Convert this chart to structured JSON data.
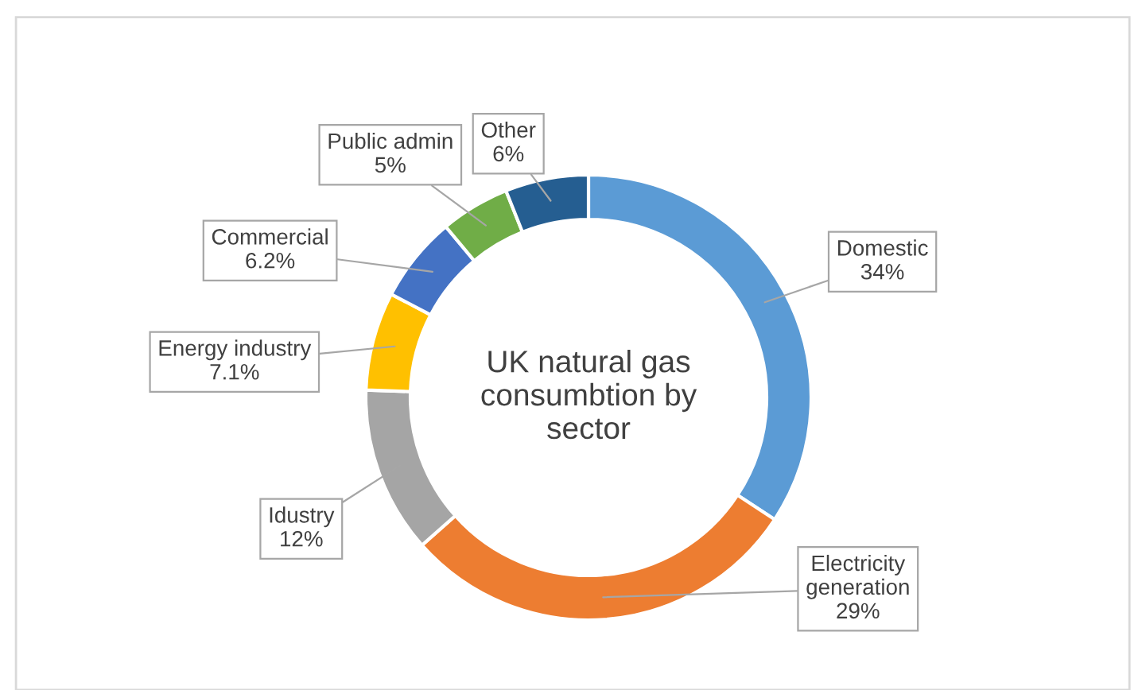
{
  "chart_data": {
    "type": "donut",
    "title": "UK natural gas consumbtion by sector",
    "categories": [
      "Domestic",
      "Electricity generation",
      "Idustry",
      "Energy industry",
      "Commercial",
      "Public admin",
      "Other"
    ],
    "values": [
      34,
      29,
      12,
      7.1,
      6.2,
      5,
      6
    ],
    "value_labels": [
      "34%",
      "29%",
      "12%",
      "7.1%",
      "6.2%",
      "5%",
      "6%"
    ],
    "colors": [
      "#5b9bd5",
      "#ed7d31",
      "#a5a5a5",
      "#ffc000",
      "#4472c4",
      "#70ad47",
      "#255e91"
    ],
    "legend": false
  }
}
